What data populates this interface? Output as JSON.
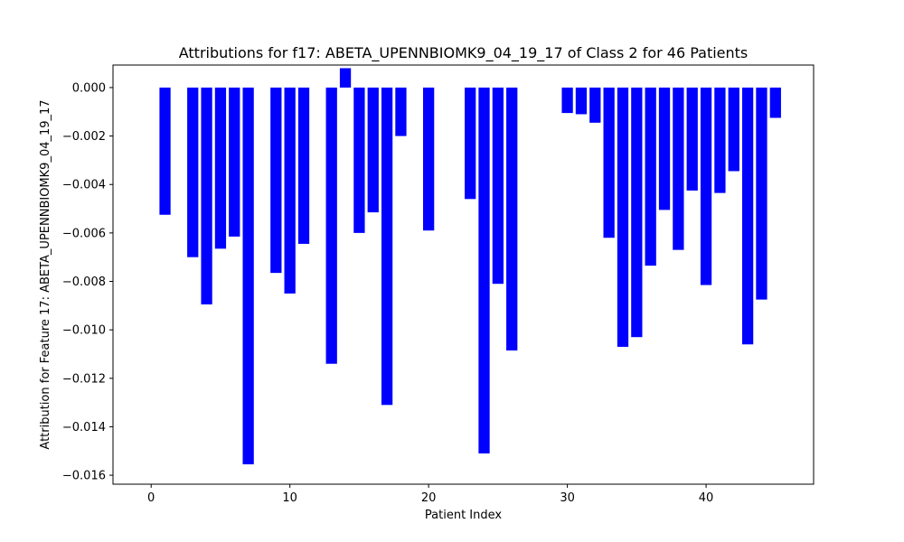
{
  "chart_data": {
    "type": "bar",
    "title": "Attributions for f17: ABETA_UPENNBIOMK9_04_19_17 of Class 2 for 46 Patients",
    "xlabel": "Patient Index",
    "ylabel": "Attribution for Feature 17: ABETA_UPENNBIOMK9_04_19_17",
    "xlim": [
      -2.75,
      47.75
    ],
    "ylim": [
      -0.01637,
      0.00093
    ],
    "xticks": [
      0,
      10,
      20,
      30,
      40
    ],
    "xtick_labels": [
      "0",
      "10",
      "20",
      "30",
      "40"
    ],
    "yticks": [
      0.0,
      -0.002,
      -0.004,
      -0.006,
      -0.008,
      -0.01,
      -0.012,
      -0.014,
      -0.016
    ],
    "ytick_labels": [
      "0.000",
      "−0.002",
      "−0.004",
      "−0.006",
      "−0.008",
      "−0.010",
      "−0.012",
      "−0.014",
      "−0.016"
    ],
    "bar_color": "#0000ff",
    "bar_width": 0.8,
    "x": [
      0,
      1,
      2,
      3,
      4,
      5,
      6,
      7,
      8,
      9,
      10,
      11,
      12,
      13,
      14,
      15,
      16,
      17,
      18,
      19,
      20,
      21,
      22,
      23,
      24,
      25,
      26,
      27,
      28,
      29,
      30,
      31,
      32,
      33,
      34,
      35,
      36,
      37,
      38,
      39,
      40,
      41,
      42,
      43,
      44,
      45
    ],
    "values": [
      0,
      -0.00525,
      0,
      -0.007,
      -0.00895,
      -0.00665,
      -0.00615,
      -0.01555,
      0,
      -0.00765,
      -0.0085,
      -0.00645,
      0,
      -0.0114,
      0.0008,
      -0.006,
      -0.00515,
      -0.0131,
      -0.002,
      0,
      -0.0059,
      0,
      0,
      -0.0046,
      -0.0151,
      -0.0081,
      -0.01085,
      0,
      0,
      0,
      -0.00105,
      -0.0011,
      -0.00145,
      -0.0062,
      -0.0107,
      -0.0103,
      -0.00735,
      -0.00505,
      -0.0067,
      -0.00425,
      -0.00815,
      -0.00435,
      -0.00345,
      -0.0106,
      -0.00875,
      -0.00125
    ]
  }
}
